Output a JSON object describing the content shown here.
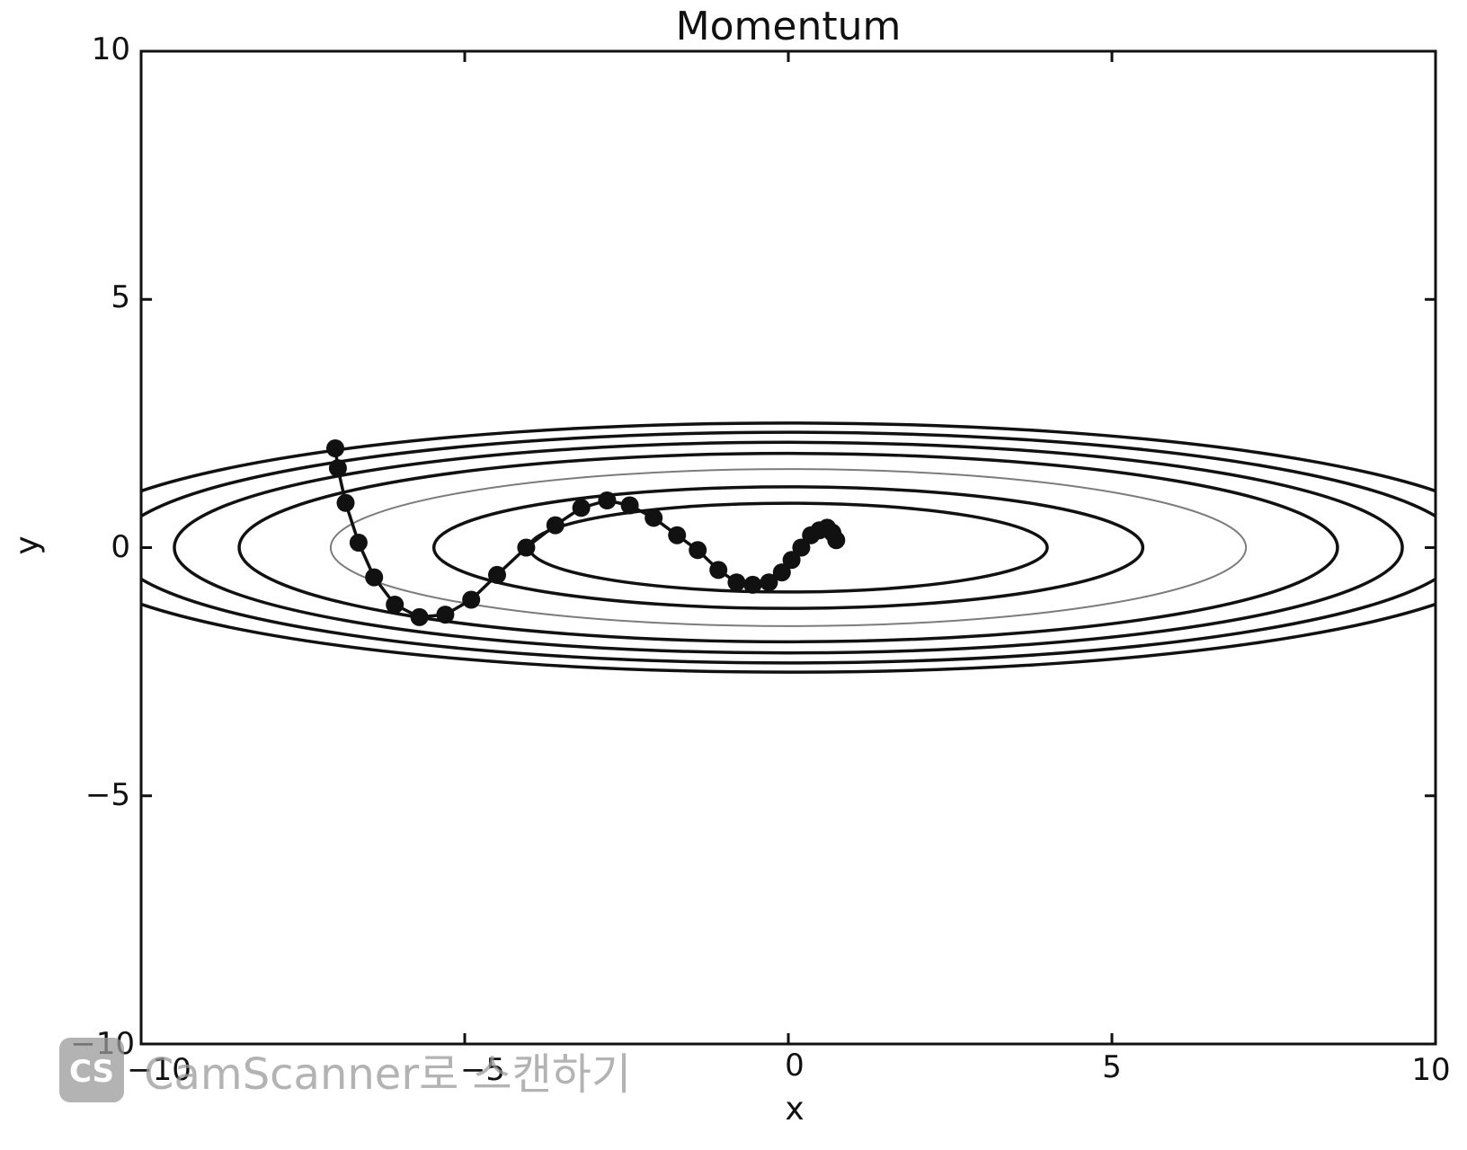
{
  "chart_data": {
    "type": "line",
    "title": "Momentum",
    "xlabel": "x",
    "ylabel": "y",
    "xlim": [
      -10,
      10
    ],
    "ylim": [
      -10,
      10
    ],
    "x_ticks": [
      -10,
      -5,
      0,
      5,
      10
    ],
    "y_ticks": [
      -10,
      -5,
      0,
      5,
      10
    ],
    "x_tick_labels": [
      "−10",
      "−5",
      "0",
      "5",
      "10"
    ],
    "y_tick_labels": [
      "−10",
      "−5",
      "0",
      "5",
      "10"
    ],
    "grid": false,
    "contour": {
      "function": "x^2/20 + y^2",
      "levels": [
        0.8,
        1.5,
        2.5,
        3.6,
        4.5,
        5.4,
        6.3
      ],
      "color": "#111111"
    },
    "series": [
      {
        "marker": "circle",
        "color": "#111111",
        "x": [
          -7.0,
          -6.96,
          -6.84,
          -6.64,
          -6.4,
          -6.08,
          -5.7,
          -5.3,
          -4.9,
          -4.5,
          -4.05,
          -3.6,
          -3.2,
          -2.8,
          -2.45,
          -2.08,
          -1.72,
          -1.4,
          -1.08,
          -0.8,
          -0.55,
          -0.3,
          -0.1,
          0.05,
          0.2,
          0.35,
          0.48,
          0.6,
          0.68,
          0.74
        ],
        "y": [
          2.0,
          1.6,
          0.9,
          0.1,
          -0.6,
          -1.15,
          -1.4,
          -1.35,
          -1.05,
          -0.55,
          0.0,
          0.45,
          0.8,
          0.95,
          0.85,
          0.6,
          0.25,
          -0.05,
          -0.45,
          -0.7,
          -0.75,
          -0.7,
          -0.5,
          -0.25,
          0.0,
          0.25,
          0.35,
          0.4,
          0.3,
          0.15
        ]
      }
    ]
  },
  "watermark": {
    "logo": "CS",
    "text": "CamScanner로 스캔하기"
  }
}
